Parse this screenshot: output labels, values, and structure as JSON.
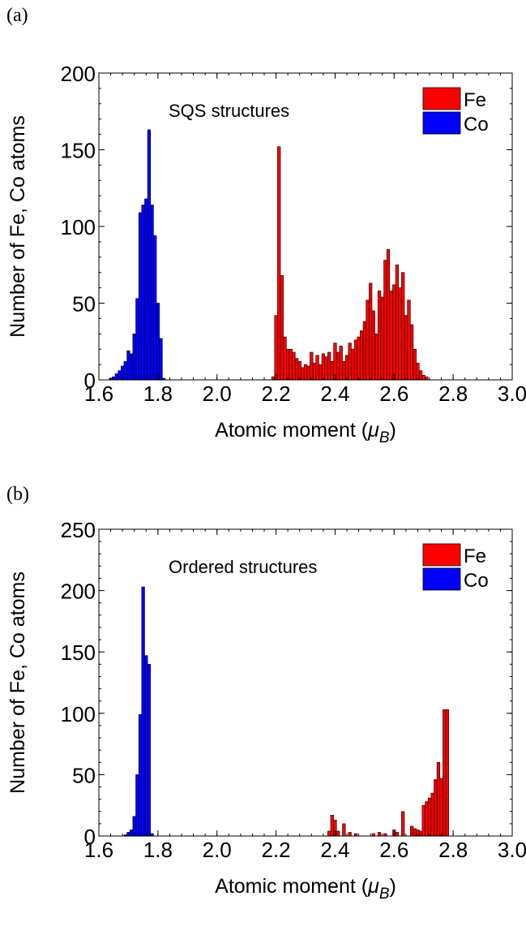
{
  "figure": {
    "panel_a_label": "(a)",
    "panel_b_label": "(b)"
  },
  "chart_data": [
    {
      "type": "bar",
      "panel": "(a)",
      "annotation": "SQS structures",
      "xlabel": "Atomic moment",
      "xlabel_symbol": "μ",
      "xlabel_subscript": "B",
      "ylabel": "Number of Fe, Co atoms",
      "xlim": [
        1.6,
        3.0
      ],
      "ylim": [
        0,
        200
      ],
      "xticks": [
        1.6,
        1.8,
        2.0,
        2.2,
        2.4,
        2.6,
        2.8,
        3.0
      ],
      "xtick_labels": [
        "1.6",
        "1.8",
        "2.0",
        "2.2",
        "2.4",
        "2.6",
        "2.8",
        "3.0"
      ],
      "yticks": [
        0,
        50,
        100,
        150,
        200
      ],
      "ytick_labels": [
        "0",
        "50",
        "100",
        "150",
        "200"
      ],
      "legend_position": "top-right",
      "bar_width": 0.01,
      "series": [
        {
          "name": "Fe",
          "color": "#ff0000",
          "x": [
            2.19,
            2.2,
            2.21,
            2.22,
            2.23,
            2.24,
            2.25,
            2.26,
            2.27,
            2.28,
            2.29,
            2.3,
            2.31,
            2.32,
            2.33,
            2.34,
            2.35,
            2.36,
            2.37,
            2.38,
            2.39,
            2.4,
            2.41,
            2.42,
            2.43,
            2.44,
            2.45,
            2.46,
            2.47,
            2.48,
            2.49,
            2.5,
            2.51,
            2.52,
            2.53,
            2.54,
            2.55,
            2.56,
            2.57,
            2.58,
            2.59,
            2.6,
            2.61,
            2.62,
            2.63,
            2.64,
            2.65,
            2.66,
            2.67,
            2.68,
            2.69,
            2.7,
            2.71
          ],
          "values": [
            2,
            42,
            152,
            68,
            28,
            20,
            20,
            18,
            14,
            12,
            8,
            10,
            9,
            18,
            11,
            16,
            10,
            17,
            15,
            18,
            12,
            24,
            18,
            22,
            12,
            16,
            24,
            20,
            26,
            28,
            32,
            38,
            52,
            63,
            45,
            30,
            58,
            54,
            78,
            85,
            58,
            62,
            75,
            60,
            70,
            42,
            52,
            36,
            20,
            11,
            6,
            3,
            2
          ]
        },
        {
          "name": "Co",
          "color": "#0000ff",
          "x": [
            1.64,
            1.65,
            1.66,
            1.67,
            1.68,
            1.69,
            1.7,
            1.71,
            1.72,
            1.73,
            1.74,
            1.75,
            1.76,
            1.77,
            1.78,
            1.79,
            1.8,
            1.81,
            1.82
          ],
          "values": [
            1,
            2,
            4,
            6,
            9,
            12,
            19,
            17,
            30,
            53,
            109,
            114,
            118,
            163,
            114,
            94,
            50,
            27,
            1
          ]
        }
      ]
    },
    {
      "type": "bar",
      "panel": "(b)",
      "annotation": "Ordered structures",
      "xlabel": "Atomic moment",
      "xlabel_symbol": "μ",
      "xlabel_subscript": "B",
      "ylabel": "Number of Fe, Co atoms",
      "xlim": [
        1.6,
        3.0
      ],
      "ylim": [
        0,
        250
      ],
      "xticks": [
        1.6,
        1.8,
        2.0,
        2.2,
        2.4,
        2.6,
        2.8,
        3.0
      ],
      "xtick_labels": [
        "1.6",
        "1.8",
        "2.0",
        "2.2",
        "2.4",
        "2.6",
        "2.8",
        "3.0"
      ],
      "yticks": [
        0,
        50,
        100,
        150,
        200,
        250
      ],
      "ytick_labels": [
        "0",
        "50",
        "100",
        "150",
        "200",
        "250"
      ],
      "legend_position": "top-right",
      "bar_width": 0.01,
      "series": [
        {
          "name": "Fe",
          "color": "#ff0000",
          "x": [
            2.38,
            2.39,
            2.4,
            2.41,
            2.43,
            2.45,
            2.47,
            2.53,
            2.55,
            2.57,
            2.6,
            2.61,
            2.63,
            2.66,
            2.67,
            2.68,
            2.69,
            2.7,
            2.71,
            2.72,
            2.73,
            2.74,
            2.75,
            2.76,
            2.77,
            2.78
          ],
          "values": [
            4,
            17,
            13,
            4,
            10,
            3,
            2,
            2,
            3,
            2,
            5,
            3,
            20,
            8,
            6,
            5,
            4,
            25,
            28,
            31,
            35,
            46,
            60,
            47,
            103,
            103
          ]
        },
        {
          "name": "Co",
          "color": "#0000ff",
          "x": [
            1.69,
            1.7,
            1.71,
            1.72,
            1.73,
            1.74,
            1.75,
            1.76,
            1.77,
            1.78
          ],
          "values": [
            1,
            3,
            5,
            16,
            50,
            99,
            203,
            147,
            140,
            2
          ]
        }
      ]
    }
  ]
}
